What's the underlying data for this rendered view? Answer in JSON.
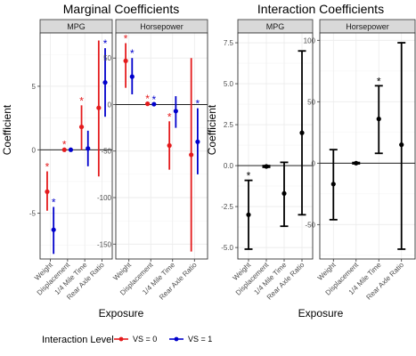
{
  "colors": {
    "vs0": "#e41a1c",
    "vs1": "#0000cc",
    "black": "#000000",
    "strip_bg": "#d9d9d9",
    "panel_border": "#333333",
    "grid_major": "#ebebeb",
    "grid_minor": "#f5f5f5",
    "zero_line": "#000000"
  },
  "legend": {
    "title": "Interaction Level",
    "items": [
      {
        "label": "VS = 0",
        "color_key": "vs0"
      },
      {
        "label": "VS = 1",
        "color_key": "vs1"
      }
    ]
  },
  "chart_data": [
    {
      "type": "scatter",
      "title": "Marginal Coefficients",
      "xlabel": "Exposure",
      "ylabel": "Coefficient",
      "grid": true,
      "facets": [
        {
          "strip": "MPG",
          "categories": [
            "Weight",
            "Displacement",
            "1/4 Mile Time",
            "Rear Axle Ratio"
          ],
          "ylim": [
            -8.6,
            9.2
          ],
          "yticks": [
            -5,
            0,
            5
          ],
          "series": [
            {
              "name": "VS = 0",
              "color_key": "vs0",
              "points": [
                {
                  "x": "Weight",
                  "y": -3.3,
                  "lo": -4.8,
                  "hi": -1.7,
                  "star": true
                },
                {
                  "x": "Displacement",
                  "y": 0.0,
                  "lo": -0.05,
                  "hi": 0.05,
                  "star": true
                },
                {
                  "x": "1/4 Mile Time",
                  "y": 1.8,
                  "lo": 0.0,
                  "hi": 3.5,
                  "star": true
                },
                {
                  "x": "Rear Axle Ratio",
                  "y": 3.3,
                  "lo": -2.1,
                  "hi": 8.6,
                  "star": false
                }
              ]
            },
            {
              "name": "VS = 1",
              "color_key": "vs1",
              "points": [
                {
                  "x": "Weight",
                  "y": -6.3,
                  "lo": -8.2,
                  "hi": -4.5,
                  "star": true
                },
                {
                  "x": "Displacement",
                  "y": 0.0,
                  "lo": -0.05,
                  "hi": 0.05,
                  "star": false
                },
                {
                  "x": "1/4 Mile Time",
                  "y": 0.1,
                  "lo": -1.3,
                  "hi": 1.5,
                  "star": false
                },
                {
                  "x": "Rear Axle Ratio",
                  "y": 5.3,
                  "lo": 2.6,
                  "hi": 8.0,
                  "star": true
                }
              ]
            }
          ]
        },
        {
          "strip": "Horsepower",
          "categories": [
            "Weight",
            "Displacement",
            "1/4 Mile Time",
            "Rear Axle Ratio"
          ],
          "ylim": [
            -166,
            77
          ],
          "yticks": [
            -150,
            -100,
            -50,
            0,
            50
          ],
          "series": [
            {
              "name": "VS = 0",
              "color_key": "vs0",
              "points": [
                {
                  "x": "Weight",
                  "y": 47,
                  "lo": 18,
                  "hi": 66,
                  "star": true
                },
                {
                  "x": "Displacement",
                  "y": 0.8,
                  "lo": 0.3,
                  "hi": 1.3,
                  "star": true
                },
                {
                  "x": "1/4 Mile Time",
                  "y": -44,
                  "lo": -70,
                  "hi": -18,
                  "star": true
                },
                {
                  "x": "Rear Axle Ratio",
                  "y": -54,
                  "lo": -158,
                  "hi": 50,
                  "star": false
                }
              ]
            },
            {
              "name": "VS = 1",
              "color_key": "vs1",
              "points": [
                {
                  "x": "Weight",
                  "y": 30,
                  "lo": 11,
                  "hi": 50,
                  "star": true
                },
                {
                  "x": "Displacement",
                  "y": 0.4,
                  "lo": 0.1,
                  "hi": 0.7,
                  "star": true
                },
                {
                  "x": "1/4 Mile Time",
                  "y": -7,
                  "lo": -25,
                  "hi": 9,
                  "star": false
                },
                {
                  "x": "Rear Axle Ratio",
                  "y": -40,
                  "lo": -75,
                  "hi": -4,
                  "star": true
                }
              ]
            }
          ]
        }
      ]
    },
    {
      "type": "scatter",
      "title": "Interaction Coefficients",
      "xlabel": "Exposure",
      "ylabel": "Coefficient",
      "grid": true,
      "facets": [
        {
          "strip": "MPG",
          "categories": [
            "Weight",
            "Displacement",
            "1/4 Mile Time",
            "Rear Axle Ratio"
          ],
          "ylim": [
            -5.7,
            8.1
          ],
          "yticks": [
            -5.0,
            -2.5,
            0.0,
            2.5,
            5.0,
            7.5
          ],
          "ytick_labels": [
            "-5.0",
            "-2.5",
            "0.0",
            "2.5",
            "5.0",
            "7.5"
          ],
          "series": [
            {
              "name": "",
              "color_key": "black",
              "points": [
                {
                  "x": "Weight",
                  "y": -3.0,
                  "lo": -5.1,
                  "hi": -0.9,
                  "star": true
                },
                {
                  "x": "Displacement",
                  "y": -0.05,
                  "lo": -0.1,
                  "hi": 0.0,
                  "star": false
                },
                {
                  "x": "1/4 Mile Time",
                  "y": -1.7,
                  "lo": -3.7,
                  "hi": 0.2,
                  "star": false
                },
                {
                  "x": "Rear Axle Ratio",
                  "y": 2.0,
                  "lo": -3.0,
                  "hi": 7.0,
                  "star": false
                }
              ]
            }
          ]
        },
        {
          "strip": "Horsepower",
          "categories": [
            "Weight",
            "Displacement",
            "1/4 Mile Time",
            "Rear Axle Ratio"
          ],
          "ylim": [
            -78,
            106
          ],
          "yticks": [
            -50,
            0,
            50,
            100
          ],
          "series": [
            {
              "name": "",
              "color_key": "black",
              "points": [
                {
                  "x": "Weight",
                  "y": -17,
                  "lo": -46,
                  "hi": 11,
                  "star": false
                },
                {
                  "x": "Displacement",
                  "y": 0.0,
                  "lo": -0.5,
                  "hi": 0.5,
                  "star": false
                },
                {
                  "x": "1/4 Mile Time",
                  "y": 36,
                  "lo": 8,
                  "hi": 63,
                  "star": true
                },
                {
                  "x": "Rear Axle Ratio",
                  "y": 15,
                  "lo": -70,
                  "hi": 98,
                  "star": false
                }
              ]
            }
          ]
        }
      ]
    }
  ]
}
